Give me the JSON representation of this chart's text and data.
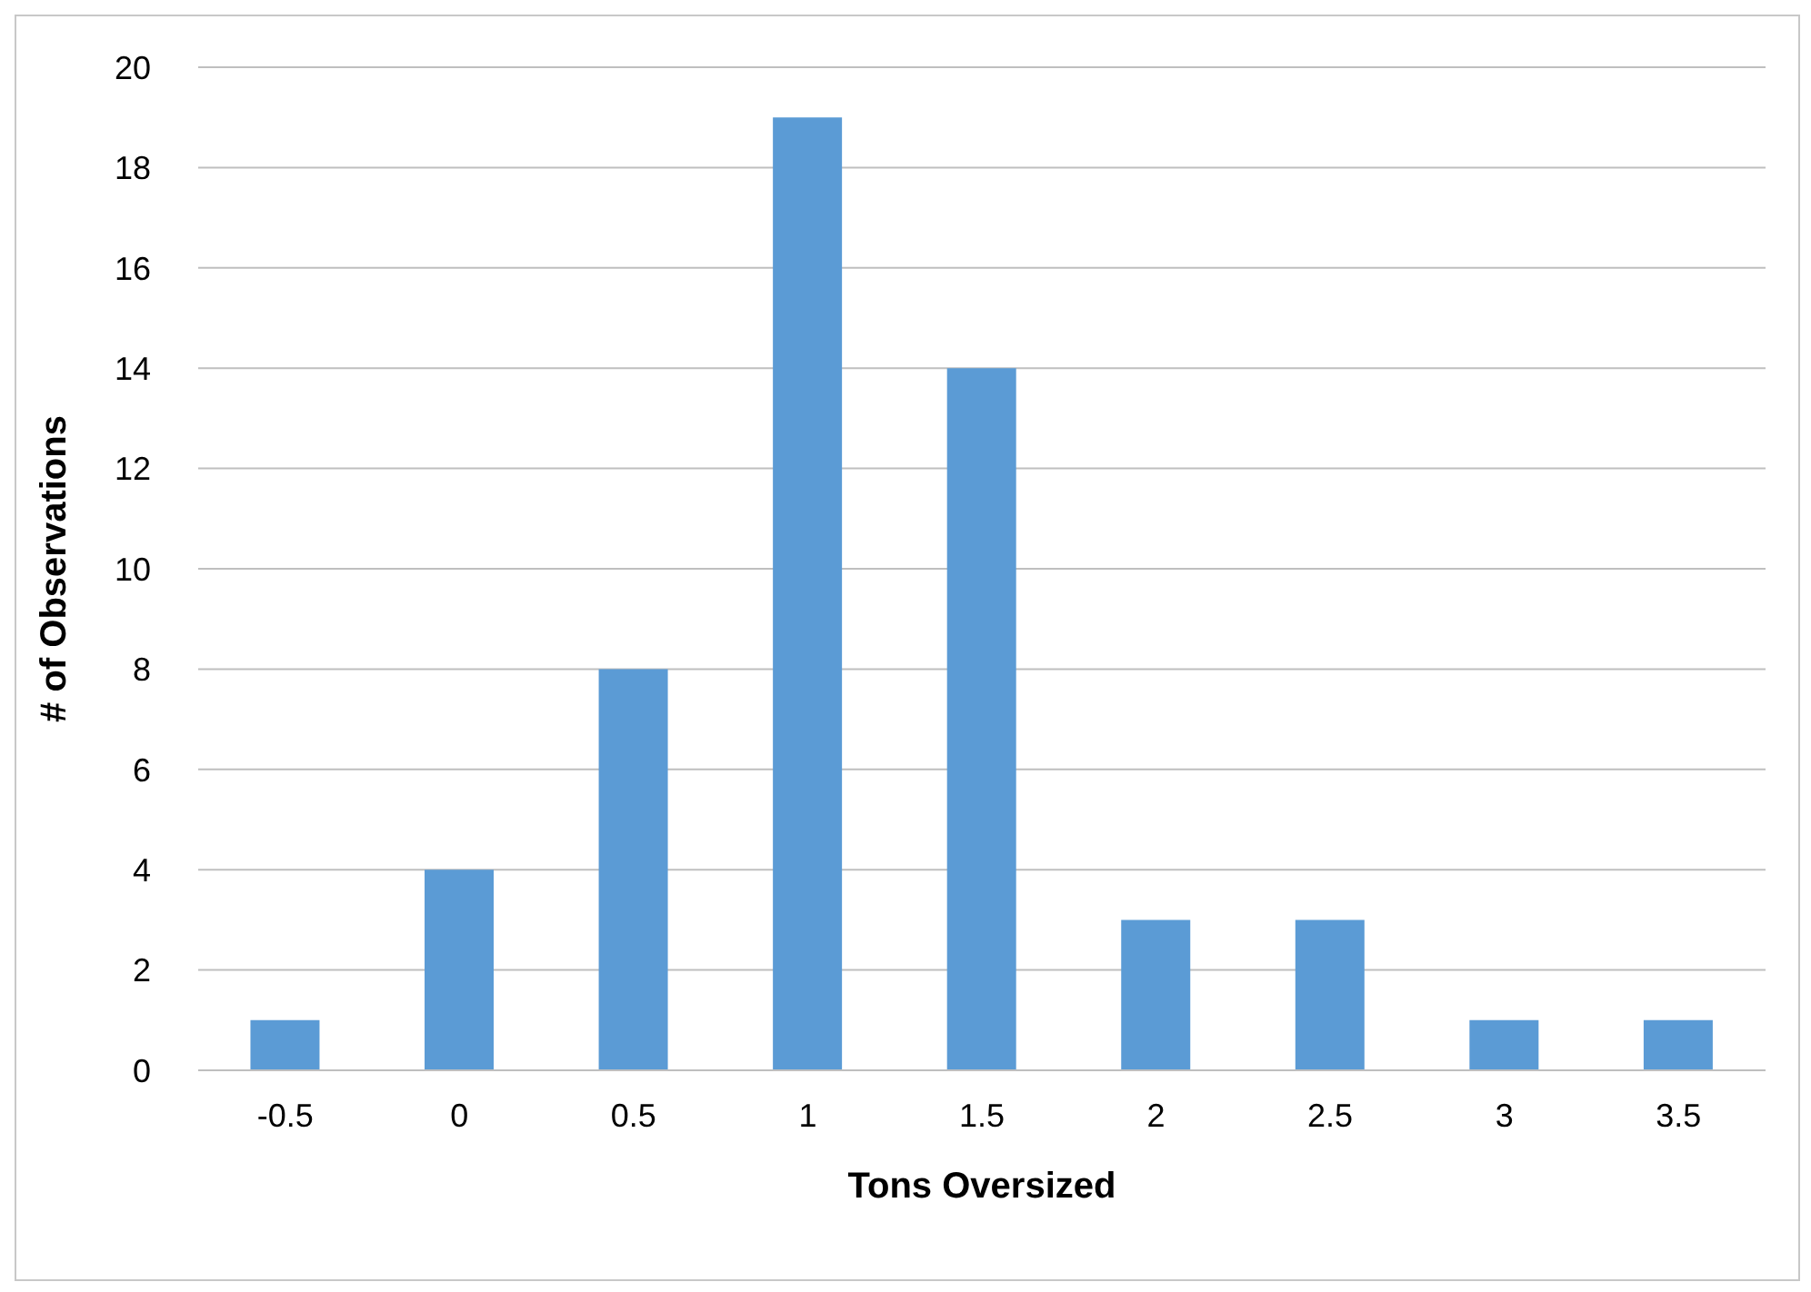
{
  "chart_data": {
    "type": "bar",
    "xlabel": "Tons Oversized",
    "ylabel": "# of Observations",
    "categories": [
      "-0.5",
      "0",
      "0.5",
      "1",
      "1.5",
      "2",
      "2.5",
      "3",
      "3.5"
    ],
    "values": [
      1,
      4,
      8,
      19,
      14,
      3,
      3,
      1,
      1
    ],
    "color": "#5b9bd5",
    "ylim": [
      0,
      20
    ],
    "yticks": [
      0,
      2,
      4,
      6,
      8,
      10,
      12,
      14,
      16,
      18,
      20
    ],
    "grid": "y",
    "legend": false
  }
}
